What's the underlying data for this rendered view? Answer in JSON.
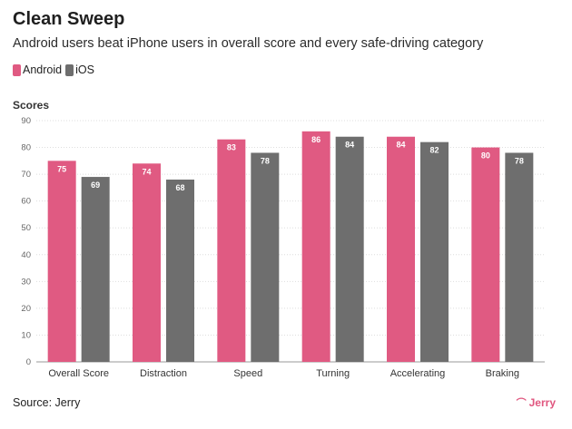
{
  "header": {
    "title": "Clean Sweep",
    "subtitle": "Android users beat iPhone users in overall score and every safe-driving category"
  },
  "legend": [
    {
      "label": "Android",
      "color": "#e05a82"
    },
    {
      "label": "iOS",
      "color": "#6e6e6e"
    }
  ],
  "footer": {
    "source": "Source: Jerry",
    "brand": "Jerry",
    "brand_icon": "jerry-logo-icon"
  },
  "chart_data": {
    "type": "bar",
    "title": "Clean Sweep",
    "subtitle": "Android users beat iPhone users in overall score and every safe-driving category",
    "ylabel": "Scores",
    "xlabel": "",
    "ylim": [
      0,
      90
    ],
    "yticks": [
      0,
      10,
      20,
      30,
      40,
      50,
      60,
      70,
      80,
      90
    ],
    "grid": true,
    "legend_position": "top-left",
    "categories": [
      "Overall Score",
      "Distraction",
      "Speed",
      "Turning",
      "Accelerating",
      "Braking"
    ],
    "series": [
      {
        "name": "Android",
        "color": "#e05a82",
        "values": [
          75,
          74,
          83,
          86,
          84,
          80
        ]
      },
      {
        "name": "iOS",
        "color": "#6e6e6e",
        "values": [
          69,
          68,
          78,
          84,
          82,
          78
        ]
      }
    ]
  }
}
